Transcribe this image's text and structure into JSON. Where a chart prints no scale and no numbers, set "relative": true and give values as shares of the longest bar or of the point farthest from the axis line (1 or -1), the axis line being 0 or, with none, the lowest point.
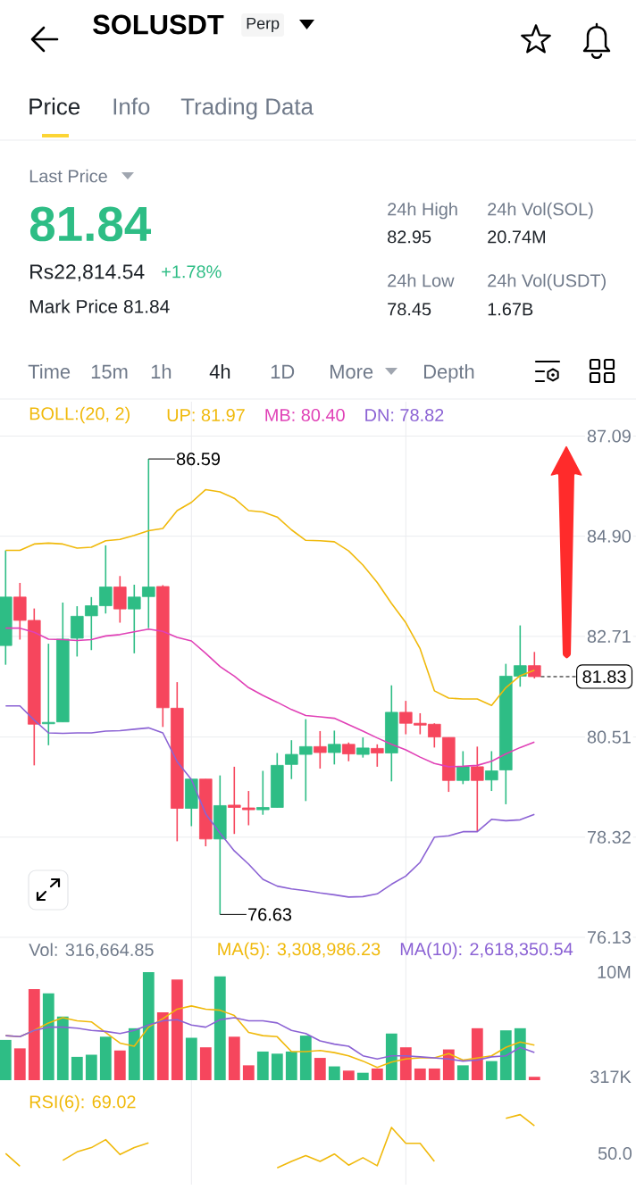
{
  "chart_data": [
    {
      "type": "other",
      "title": "SOLUSDT",
      "annotations": [
        "Perp",
        "Price",
        "Info",
        "Trading Data",
        "Last Price",
        "81.84",
        "Rs22,814.54",
        "+1.78%",
        "Mark Price 81.84",
        "24h High",
        "82.95",
        "24h Low",
        "78.45",
        "24h Vol(SOL)",
        "20.74M",
        "24h Vol(USDT)",
        "1.67B",
        "Time",
        "15m",
        "1h",
        "4h",
        "1D",
        "More",
        "Depth"
      ]
    },
    {
      "type": "candlestick",
      "legend_title": "BOLL:(20, 2)",
      "categories": [
        null,
        null,
        null,
        null,
        null,
        null,
        null,
        null,
        null,
        null,
        null,
        null,
        null,
        null,
        null,
        null,
        null,
        null,
        null,
        null,
        null,
        null,
        null,
        null,
        null,
        null,
        null,
        null,
        null,
        null,
        null,
        null,
        null,
        null,
        null,
        null,
        null,
        null
      ],
      "ohlc": [
        [
          82.51,
          84.59,
          82.09,
          83.57
        ],
        [
          83.57,
          83.88,
          82.64,
          83.06
        ],
        [
          83.06,
          83.32,
          79.89,
          80.79
        ],
        [
          80.8,
          82.55,
          80.33,
          80.83
        ],
        [
          80.84,
          83.45,
          80.84,
          82.65
        ],
        [
          82.67,
          83.37,
          82.27,
          83.15
        ],
        [
          83.16,
          83.57,
          82.41,
          83.38
        ],
        [
          83.38,
          84.7,
          83.21,
          83.79
        ],
        [
          83.79,
          84.03,
          83.01,
          83.31
        ],
        [
          83.31,
          83.84,
          82.34,
          83.57
        ],
        [
          83.58,
          86.59,
          82.89,
          83.79
        ],
        [
          83.8,
          83.83,
          80.73,
          81.15
        ],
        [
          81.14,
          81.71,
          78.23,
          78.95
        ],
        [
          78.95,
          79.59,
          78.56,
          79.59
        ],
        [
          79.59,
          79.59,
          78.12,
          78.28
        ],
        [
          78.28,
          79.67,
          76.63,
          79.01
        ],
        [
          79.02,
          79.86,
          78.39,
          78.97
        ],
        [
          78.96,
          79.33,
          78.58,
          78.92
        ],
        [
          78.92,
          79.77,
          78.81,
          78.97
        ],
        [
          78.97,
          80.16,
          78.97,
          79.89
        ],
        [
          79.91,
          80.44,
          79.59,
          80.13
        ],
        [
          80.13,
          80.9,
          79.11,
          80.3
        ],
        [
          80.3,
          80.64,
          79.82,
          80.17
        ],
        [
          80.17,
          80.65,
          79.91,
          80.35
        ],
        [
          80.35,
          80.39,
          79.98,
          80.14
        ],
        [
          80.13,
          80.5,
          80.06,
          80.27
        ],
        [
          80.26,
          80.35,
          79.86,
          80.16
        ],
        [
          80.16,
          81.64,
          79.54,
          81.05
        ],
        [
          81.05,
          81.3,
          80.57,
          80.81
        ],
        [
          80.81,
          81.03,
          80.57,
          80.77
        ],
        [
          80.79,
          80.81,
          80.28,
          80.51
        ],
        [
          80.5,
          80.5,
          79.31,
          79.56
        ],
        [
          79.56,
          80.2,
          79.48,
          79.86
        ],
        [
          79.86,
          80.3,
          78.45,
          79.56
        ],
        [
          79.57,
          80.2,
          79.33,
          79.77
        ],
        [
          79.79,
          82.11,
          79.04,
          81.84
        ],
        [
          81.84,
          82.95,
          81.61,
          82.07
        ],
        [
          82.07,
          82.37,
          81.79,
          81.83
        ]
      ],
      "colors": [
        "#2ebd85",
        "#f6465d",
        "#f6465d",
        "#2ebd85",
        "#2ebd85",
        "#2ebd85",
        "#2ebd85",
        "#2ebd85",
        "#f6465d",
        "#2ebd85",
        "#2ebd85",
        "#f6465d",
        "#f6465d",
        "#2ebd85",
        "#f6465d",
        "#2ebd85",
        "#f6465d",
        "#f6465d",
        "#2ebd85",
        "#2ebd85",
        "#2ebd85",
        "#2ebd85",
        "#f6465d",
        "#2ebd85",
        "#f6465d",
        "#2ebd85",
        "#f6465d",
        "#2ebd85",
        "#f6465d",
        "#f6465d",
        "#f6465d",
        "#f6465d",
        "#2ebd85",
        "#f6465d",
        "#2ebd85",
        "#2ebd85",
        "#2ebd85",
        "#f6465d"
      ],
      "series": [
        {
          "name": "UP: 81.97",
          "type": "line",
          "color": "#f0b90b",
          "values": [
            84.59,
            84.59,
            84.73,
            84.75,
            84.73,
            84.64,
            84.66,
            84.8,
            84.83,
            84.92,
            85.02,
            85.07,
            85.46,
            85.64,
            85.92,
            85.87,
            85.73,
            85.46,
            85.43,
            85.32,
            85.04,
            84.81,
            84.8,
            84.78,
            84.58,
            84.27,
            83.89,
            83.43,
            83.01,
            82.44,
            81.52,
            81.36,
            81.34,
            81.34,
            81.2,
            81.59,
            81.85,
            81.97
          ]
        },
        {
          "name": "MB: 80.40",
          "type": "line",
          "color": "#e040b6",
          "values": [
            82.89,
            82.89,
            82.8,
            82.65,
            82.64,
            82.62,
            82.64,
            82.72,
            82.75,
            82.81,
            82.87,
            82.82,
            82.69,
            82.61,
            82.34,
            82.05,
            81.84,
            81.59,
            81.42,
            81.27,
            81.11,
            80.98,
            80.95,
            80.92,
            80.78,
            80.64,
            80.49,
            80.35,
            80.23,
            80.07,
            79.93,
            79.86,
            79.87,
            79.89,
            79.98,
            80.14,
            80.28,
            80.4
          ]
        },
        {
          "name": "DN: 78.82",
          "type": "line",
          "color": "#8b62d4",
          "values": [
            81.19,
            81.19,
            80.88,
            80.6,
            80.59,
            80.6,
            80.6,
            80.64,
            80.65,
            80.68,
            80.71,
            80.6,
            79.97,
            79.58,
            78.83,
            78.41,
            78.02,
            77.73,
            77.4,
            77.25,
            77.19,
            77.15,
            77.1,
            77.06,
            77.01,
            77.02,
            77.08,
            77.29,
            77.47,
            77.77,
            78.32,
            78.35,
            78.44,
            78.44,
            78.71,
            78.68,
            78.7,
            78.82
          ]
        }
      ],
      "ylim": [
        76.13,
        87.09
      ],
      "yticks": [
        87.09,
        {
          "value": 84.9,
          "label": "84.90"
        },
        82.71,
        80.51,
        78.32,
        76.13
      ],
      "grid": "y",
      "legend": "top",
      "ref_lines": [
        {
          "axis": "y",
          "value": 81.83,
          "label": "81.83",
          "color": "#000000",
          "line_style": "dashed"
        }
      ],
      "annotations": [
        "86.59",
        "76.63"
      ]
    },
    {
      "type": "bar",
      "legend_title": "Vol: 316,664.85",
      "categories": [
        null,
        null,
        null,
        null,
        null,
        null,
        null,
        null,
        null,
        null,
        null,
        null,
        null,
        null,
        null,
        null,
        null,
        null,
        null,
        null,
        null,
        null,
        null,
        null,
        null,
        null,
        null,
        null,
        null,
        null,
        null,
        null,
        null,
        null,
        null,
        null,
        null,
        null
      ],
      "series": [
        {
          "colors": [
            "#2ebd85",
            "#f6465d",
            "#f6465d",
            "#2ebd85",
            "#2ebd85",
            "#2ebd85",
            "#2ebd85",
            "#2ebd85",
            "#f6465d",
            "#2ebd85",
            "#2ebd85",
            "#f6465d",
            "#f6465d",
            "#2ebd85",
            "#f6465d",
            "#2ebd85",
            "#f6465d",
            "#f6465d",
            "#2ebd85",
            "#2ebd85",
            "#2ebd85",
            "#2ebd85",
            "#f6465d",
            "#2ebd85",
            "#f6465d",
            "#2ebd85",
            "#f6465d",
            "#2ebd85",
            "#f6465d",
            "#f6465d",
            "#f6465d",
            "#f6465d",
            "#2ebd85",
            "#f6465d",
            "#2ebd85",
            "#2ebd85",
            "#2ebd85",
            "#f6465d"
          ],
          "values": [
            3800000,
            3000000,
            8600000,
            8200000,
            6000000,
            2200000,
            2400000,
            4100000,
            2800000,
            4900000,
            10200000,
            6400000,
            9500000,
            4000000,
            3100000,
            9800000,
            4100000,
            1400000,
            2700000,
            2500000,
            2700000,
            4200000,
            2100000,
            1300000,
            900000,
            700000,
            1100000,
            4400000,
            3100000,
            1100000,
            1100000,
            2900000,
            1400000,
            4900000,
            1800000,
            4700000,
            4900000,
            316664.85
          ]
        },
        {
          "name": "MA(5): 3,308,986.23",
          "type": "line",
          "color": "#f0b90b",
          "values": [
            4200000,
            4100000,
            4700000,
            5400000,
            5900000,
            5600000,
            5500000,
            4500000,
            3500000,
            3200000,
            5000000,
            5800000,
            6700000,
            7000000,
            6700000,
            6600000,
            6100000,
            4500000,
            4200000,
            4100000,
            2700000,
            2700000,
            2800000,
            2600000,
            2300000,
            1800000,
            1200000,
            1700000,
            2000000,
            2100000,
            2100000,
            2500000,
            1900000,
            2100000,
            2300000,
            3100000,
            3600000,
            3308986.23
          ]
        },
        {
          "name": "MA(10): 2,618,350.54",
          "type": "line",
          "color": "#8b62d4",
          "values": [
            4200000,
            4100000,
            4700000,
            5000000,
            5000000,
            4900000,
            4700000,
            4600000,
            4400000,
            4700000,
            5200000,
            5600000,
            5700000,
            5200000,
            5000000,
            5700000,
            5900000,
            5600000,
            5600000,
            5400000,
            4700000,
            4400000,
            3700000,
            3400000,
            3200000,
            2300000,
            2000000,
            2300000,
            2300000,
            2200000,
            2100000,
            2000000,
            1800000,
            1900000,
            2200000,
            2300000,
            3100000,
            2618350.54
          ]
        }
      ],
      "ylim": [
        0,
        10200000
      ],
      "yticks": [
        {
          "value": 10200000,
          "label": "10M"
        },
        {
          "value": 317000,
          "label": "317K"
        }
      ],
      "legend": "top right"
    },
    {
      "type": "line",
      "relative": true,
      "categories": [
        null,
        null,
        null,
        null,
        null,
        null,
        null,
        null,
        null,
        null,
        null,
        null,
        null,
        null,
        null,
        null,
        null,
        null,
        null,
        null,
        null,
        null,
        null,
        null,
        null,
        null,
        null,
        null,
        null,
        null,
        null,
        null,
        null,
        null,
        null,
        null,
        null,
        null
      ],
      "series": [
        {
          "name": "RSI(6): 69.02",
          "color": "#f0b90b",
          "values": [
            0.27,
            0.03,
            null,
            null,
            0.14,
            0.3,
            0.38,
            0.53,
            0.25,
            0.38,
            0.47,
            null,
            null,
            null,
            null,
            null,
            null,
            null,
            null,
            0,
            0.12,
            0.23,
            0.12,
            0.26,
            0.05,
            0.19,
            0.04,
            0.76,
            0.46,
            0.46,
            0.12,
            null,
            null,
            null,
            null,
            0.93,
            1,
            0.79
          ]
        }
      ],
      "annotations": [
        "50.0"
      ],
      "legend": "top left"
    }
  ]
}
